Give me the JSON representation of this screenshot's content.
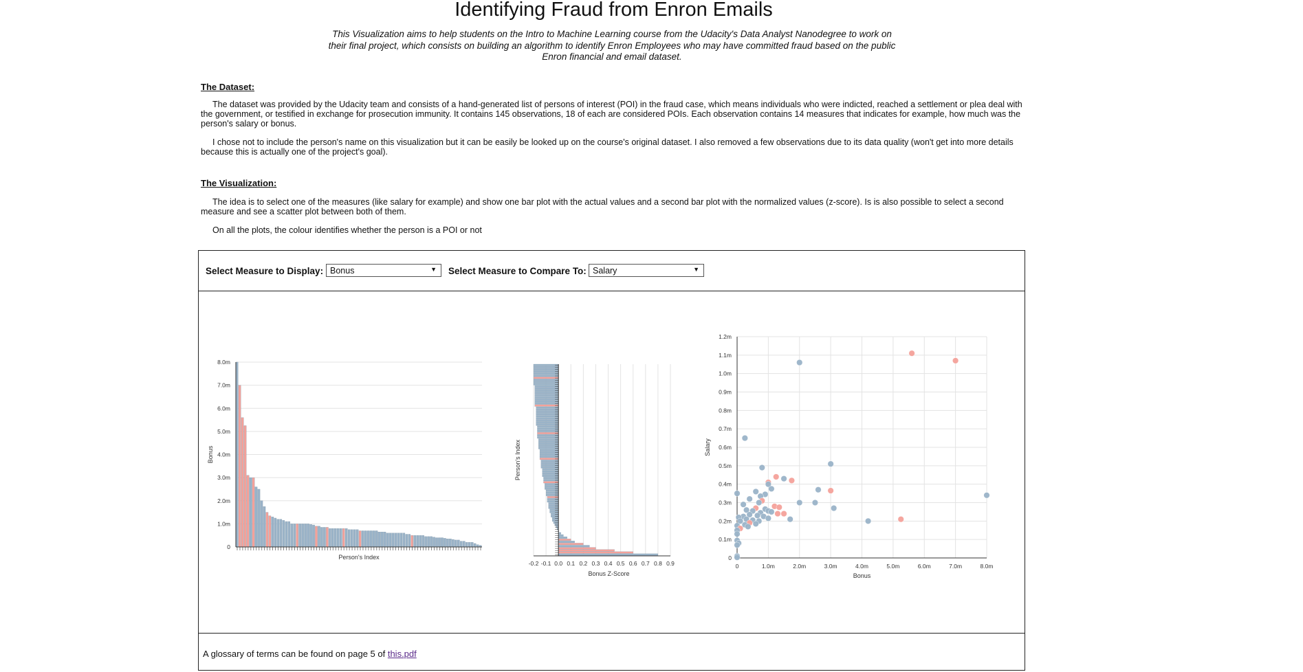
{
  "page": {
    "title": "Identifying Fraud from Enron Emails",
    "intro": "This Visualization aims to help students on the Intro to Machine Learning course from the Udacity's Data Analyst Nanodegree to work on their final project, which consists on building an algorithm to identify Enron Employees who may have committed fraud based on the public Enron financial and email dataset.",
    "dataset_heading": "The Dataset:",
    "dataset_p1": "The dataset was provided by the Udacity team and consists of a hand-generated list of persons of interest (POI) in the fraud case, which means individuals who were indicted, reached a settlement or plea deal with the government, or testified in exchange for prosecution immunity. It contains 145 observations, 18 of each are considered POIs. Each observation contains 14 measures that indicates for example, how much was the person's salary or bonus.",
    "dataset_p2": "I chose not to include the person's name on this visualization but it can be easily be looked up on the course's original dataset. I also removed a few observations due to its data quality (won't get into more details because this is actually one of the project's goal).",
    "viz_heading": "The Visualization:",
    "viz_p1": "The idea is to select one of the measures (like salary for example) and show one bar plot with the actual values and a second bar plot with the normalized values (z-score). Is is also possible to select a second measure and see a scatter plot between both of them.",
    "viz_p2": "On all the plots, the colour identifies whether the person is a POI or not"
  },
  "controls": {
    "measure_label": "Select Measure to Display:",
    "measure_value": "Bonus",
    "compare_label": "Select Measure to Compare To:",
    "compare_value": "Salary"
  },
  "footer": {
    "text": "A glossary of terms can be found on page 5 of ",
    "link": "this.pdf"
  },
  "colors": {
    "poi": "#f4a19a",
    "non_poi": "#9ab3c8"
  },
  "chart_data": [
    {
      "type": "bar",
      "xlabel": "Person's Index",
      "ylabel": "Bonus",
      "ylim": [
        0,
        8000000
      ],
      "yticks": [
        0,
        1000000,
        2000000,
        3000000,
        4000000,
        5000000,
        6000000,
        7000000,
        8000000
      ],
      "ytick_labels": [
        "0",
        "1.0m",
        "2.0m",
        "3.0m",
        "4.0m",
        "5.0m",
        "6.0m",
        "7.0m",
        "8.0m"
      ],
      "values": [
        8000000,
        7000000,
        5600000,
        5249999,
        3100000,
        3000000,
        3000000,
        2600000,
        2500000,
        2000000,
        1750000,
        1500000,
        1350000,
        1300000,
        1250000,
        1200000,
        1200000,
        1150000,
        1100000,
        1100000,
        1000000,
        1000000,
        1000000,
        1000000,
        1000000,
        1000000,
        1000000,
        975000,
        950000,
        900000,
        900000,
        850000,
        850000,
        850000,
        800000,
        800000,
        800000,
        800000,
        800000,
        800000,
        800000,
        750000,
        750000,
        750000,
        750000,
        700000,
        700000,
        700000,
        700000,
        700000,
        700000,
        700000,
        650000,
        650000,
        650000,
        600000,
        600000,
        600000,
        600000,
        600000,
        600000,
        600000,
        550000,
        550000,
        500000,
        500000,
        500000,
        500000,
        500000,
        450000,
        450000,
        450000,
        425000,
        400000,
        400000,
        400000,
        375000,
        350000,
        350000,
        325000,
        300000,
        300000,
        250000,
        250000,
        200000,
        200000,
        200000,
        150000,
        100000,
        70000
      ],
      "poi": [
        0,
        1,
        1,
        1,
        1,
        0,
        1,
        0,
        0,
        0,
        0,
        1,
        1,
        0,
        0,
        0,
        0,
        0,
        0,
        0,
        0,
        0,
        1,
        0,
        0,
        0,
        0,
        0,
        0,
        1,
        0,
        0,
        0,
        1,
        0,
        0,
        0,
        0,
        0,
        1,
        0,
        0,
        0,
        0,
        0,
        1,
        0,
        0,
        0,
        0,
        0,
        0,
        0,
        0,
        0,
        0,
        0,
        0,
        0,
        0,
        0,
        0,
        0,
        0,
        1,
        0,
        0,
        0,
        0,
        0,
        0,
        0,
        0,
        0,
        0,
        0,
        0,
        0,
        0,
        0,
        0,
        0,
        0,
        0,
        0,
        0,
        0,
        0,
        0,
        0
      ]
    },
    {
      "type": "bar",
      "orientation": "horizontal",
      "xlabel": "Bonus Z-Score",
      "ylabel": "Person's Index",
      "xlim": [
        -0.2,
        0.9
      ],
      "xticks": [
        -0.2,
        -0.1,
        0.0,
        0.1,
        0.2,
        0.3,
        0.4,
        0.5,
        0.6,
        0.7,
        0.8,
        0.9
      ],
      "xtick_labels": [
        "-0.2",
        "-0.1",
        "0.0",
        "0.1",
        "0.2",
        "0.3",
        "0.4",
        "0.5",
        "0.6",
        "0.7",
        "0.8",
        "0.9"
      ],
      "values": [
        -0.2,
        -0.2,
        -0.2,
        -0.2,
        -0.2,
        -0.2,
        -0.2,
        -0.2,
        -0.2,
        -0.2,
        -0.19,
        -0.19,
        -0.19,
        -0.19,
        -0.19,
        -0.19,
        -0.19,
        -0.19,
        -0.19,
        -0.19,
        -0.18,
        -0.18,
        -0.18,
        -0.18,
        -0.18,
        -0.18,
        -0.18,
        -0.18,
        -0.18,
        -0.17,
        -0.17,
        -0.17,
        -0.17,
        -0.17,
        -0.17,
        -0.16,
        -0.16,
        -0.16,
        -0.16,
        -0.16,
        -0.15,
        -0.15,
        -0.15,
        -0.15,
        -0.15,
        -0.14,
        -0.14,
        -0.14,
        -0.14,
        -0.13,
        -0.13,
        -0.13,
        -0.13,
        -0.12,
        -0.12,
        -0.12,
        -0.11,
        -0.11,
        -0.11,
        -0.1,
        -0.1,
        -0.1,
        -0.09,
        -0.09,
        -0.09,
        -0.08,
        -0.08,
        -0.08,
        -0.07,
        -0.07,
        -0.06,
        -0.06,
        -0.05,
        -0.05,
        -0.04,
        -0.03,
        -0.02,
        -0.01,
        0.0,
        0.02,
        0.04,
        0.07,
        0.1,
        0.13,
        0.2,
        0.25,
        0.3,
        0.45,
        0.6,
        0.8
      ],
      "poi": [
        0,
        0,
        0,
        0,
        0,
        0,
        1,
        0,
        0,
        0,
        0,
        0,
        0,
        0,
        0,
        0,
        0,
        0,
        0,
        1,
        0,
        0,
        0,
        0,
        0,
        0,
        0,
        0,
        0,
        0,
        0,
        0,
        1,
        0,
        0,
        0,
        0,
        0,
        0,
        0,
        0,
        0,
        0,
        0,
        1,
        0,
        0,
        0,
        0,
        0,
        0,
        0,
        0,
        0,
        0,
        1,
        0,
        0,
        0,
        0,
        0,
        0,
        1,
        0,
        0,
        0,
        0,
        0,
        0,
        0,
        0,
        0,
        0,
        0,
        0,
        0,
        0,
        0,
        0,
        0,
        0,
        0,
        1,
        0,
        1,
        0,
        1,
        1,
        1,
        0
      ]
    },
    {
      "type": "scatter",
      "xlabel": "Bonus",
      "ylabel": "Salary",
      "xlim": [
        0,
        8000000
      ],
      "ylim": [
        0,
        1200000
      ],
      "xticks": [
        0,
        1000000,
        2000000,
        3000000,
        4000000,
        5000000,
        6000000,
        7000000,
        8000000
      ],
      "xtick_labels": [
        "0",
        "1.0m",
        "2.0m",
        "3.0m",
        "4.0m",
        "5.0m",
        "6.0m",
        "7.0m",
        "8.0m"
      ],
      "yticks": [
        0,
        100000,
        200000,
        300000,
        400000,
        500000,
        600000,
        700000,
        800000,
        900000,
        1000000,
        1100000,
        1200000
      ],
      "ytick_labels": [
        "0",
        "0.1m",
        "0.2m",
        "0.3m",
        "0.4m",
        "0.5m",
        "0.6m",
        "0.7m",
        "0.8m",
        "0.9m",
        "1.0m",
        "1.1m",
        "1.2m"
      ],
      "points": [
        {
          "x": 5600000,
          "y": 1110000,
          "poi": 1
        },
        {
          "x": 7000000,
          "y": 1070000,
          "poi": 1
        },
        {
          "x": 2000000,
          "y": 1060000,
          "poi": 0
        },
        {
          "x": 250000,
          "y": 650000,
          "poi": 0
        },
        {
          "x": 3000000,
          "y": 510000,
          "poi": 0
        },
        {
          "x": 800000,
          "y": 490000,
          "poi": 0
        },
        {
          "x": 1250000,
          "y": 440000,
          "poi": 1
        },
        {
          "x": 1500000,
          "y": 430000,
          "poi": 0
        },
        {
          "x": 1750000,
          "y": 420000,
          "poi": 1
        },
        {
          "x": 1000000,
          "y": 410000,
          "poi": 1
        },
        {
          "x": 1000000,
          "y": 400000,
          "poi": 0
        },
        {
          "x": 2600000,
          "y": 370000,
          "poi": 0
        },
        {
          "x": 3000000,
          "y": 365000,
          "poi": 1
        },
        {
          "x": 600000,
          "y": 360000,
          "poi": 0
        },
        {
          "x": 1100000,
          "y": 375000,
          "poi": 0
        },
        {
          "x": 0,
          "y": 350000,
          "poi": 0
        },
        {
          "x": 900000,
          "y": 345000,
          "poi": 0
        },
        {
          "x": 750000,
          "y": 335000,
          "poi": 0
        },
        {
          "x": 8000000,
          "y": 340000,
          "poi": 0
        },
        {
          "x": 400000,
          "y": 320000,
          "poi": 0
        },
        {
          "x": 800000,
          "y": 310000,
          "poi": 1
        },
        {
          "x": 700000,
          "y": 300000,
          "poi": 0
        },
        {
          "x": 2500000,
          "y": 300000,
          "poi": 0
        },
        {
          "x": 2000000,
          "y": 300000,
          "poi": 0
        },
        {
          "x": 1200000,
          "y": 280000,
          "poi": 1
        },
        {
          "x": 200000,
          "y": 290000,
          "poi": 0
        },
        {
          "x": 1350000,
          "y": 275000,
          "poi": 1
        },
        {
          "x": 600000,
          "y": 270000,
          "poi": 1
        },
        {
          "x": 3100000,
          "y": 270000,
          "poi": 0
        },
        {
          "x": 900000,
          "y": 265000,
          "poi": 0
        },
        {
          "x": 300000,
          "y": 260000,
          "poi": 0
        },
        {
          "x": 500000,
          "y": 255000,
          "poi": 0
        },
        {
          "x": 1000000,
          "y": 255000,
          "poi": 0
        },
        {
          "x": 1100000,
          "y": 250000,
          "poi": 0
        },
        {
          "x": 750000,
          "y": 245000,
          "poi": 0
        },
        {
          "x": 1300000,
          "y": 240000,
          "poi": 1
        },
        {
          "x": 1500000,
          "y": 240000,
          "poi": 1
        },
        {
          "x": 400000,
          "y": 235000,
          "poi": 0
        },
        {
          "x": 650000,
          "y": 230000,
          "poi": 0
        },
        {
          "x": 850000,
          "y": 225000,
          "poi": 0
        },
        {
          "x": 200000,
          "y": 225000,
          "poi": 0
        },
        {
          "x": 50000,
          "y": 220000,
          "poi": 0
        },
        {
          "x": 1000000,
          "y": 215000,
          "poi": 0
        },
        {
          "x": 1700000,
          "y": 210000,
          "poi": 0
        },
        {
          "x": 5250000,
          "y": 210000,
          "poi": 1
        },
        {
          "x": 4200000,
          "y": 200000,
          "poi": 0
        },
        {
          "x": 300000,
          "y": 210000,
          "poi": 0
        },
        {
          "x": 500000,
          "y": 205000,
          "poi": 0
        },
        {
          "x": 100000,
          "y": 200000,
          "poi": 0
        },
        {
          "x": 700000,
          "y": 200000,
          "poi": 0
        },
        {
          "x": 400000,
          "y": 190000,
          "poi": 1
        },
        {
          "x": 250000,
          "y": 180000,
          "poi": 0
        },
        {
          "x": 600000,
          "y": 185000,
          "poi": 0
        },
        {
          "x": 0,
          "y": 175000,
          "poi": 0
        },
        {
          "x": 350000,
          "y": 170000,
          "poi": 0
        },
        {
          "x": 100000,
          "y": 160000,
          "poi": 1
        },
        {
          "x": 0,
          "y": 150000,
          "poi": 0
        },
        {
          "x": 0,
          "y": 130000,
          "poi": 0
        },
        {
          "x": 0,
          "y": 95000,
          "poi": 0
        },
        {
          "x": 50000,
          "y": 80000,
          "poi": 0
        },
        {
          "x": 0,
          "y": 70000,
          "poi": 0
        },
        {
          "x": 0,
          "y": 10000,
          "poi": 0
        },
        {
          "x": 0,
          "y": 3000,
          "poi": 0
        }
      ]
    }
  ]
}
